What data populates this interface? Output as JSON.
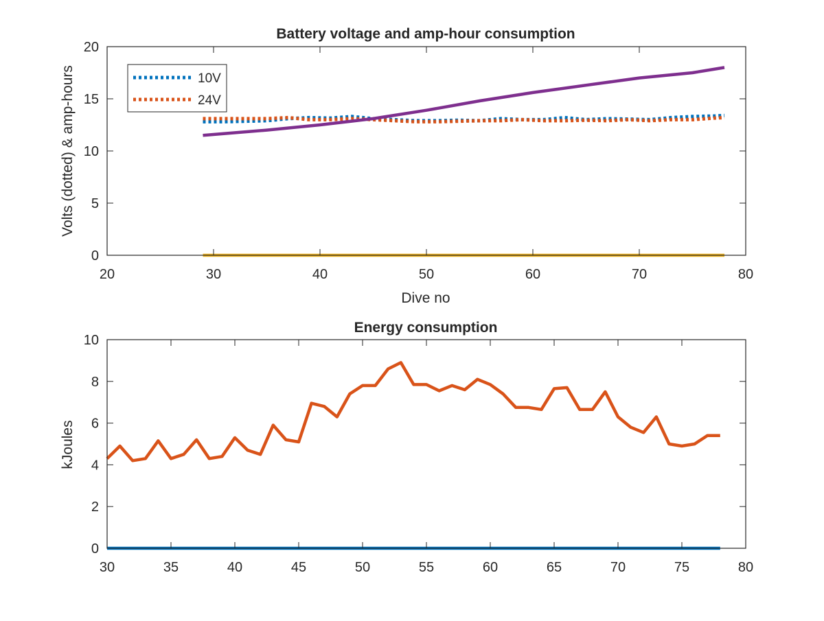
{
  "chart_data": [
    {
      "type": "line",
      "title": "Battery voltage and amp-hour consumption",
      "xlabel": "Dive no",
      "ylabel": "Volts (dotted) & amp-hours",
      "xlim": [
        20,
        80
      ],
      "ylim": [
        0,
        20
      ],
      "xticks": [
        "20",
        "30",
        "40",
        "50",
        "60",
        "70",
        "80"
      ],
      "yticks": [
        "0",
        "5",
        "10",
        "15",
        "20"
      ],
      "grid": false,
      "legend_position": "top-left",
      "series": [
        {
          "name": "10V",
          "style": "dotted",
          "color": "#0072BD",
          "x": [
            29,
            31,
            33,
            35,
            37,
            39,
            41,
            43,
            45,
            47,
            49,
            51,
            53,
            55,
            57,
            59,
            61,
            63,
            65,
            67,
            69,
            71,
            73,
            75,
            77,
            78
          ],
          "y": [
            12.8,
            12.8,
            12.85,
            12.9,
            13.1,
            13.2,
            13.15,
            13.3,
            13.1,
            13.0,
            12.9,
            12.9,
            12.95,
            12.9,
            13.1,
            13.0,
            13.0,
            13.2,
            13.0,
            13.1,
            13.05,
            13.0,
            13.2,
            13.3,
            13.35,
            13.4
          ]
        },
        {
          "name": "24V",
          "style": "dotted",
          "color": "#D95319",
          "x": [
            29,
            31,
            33,
            35,
            37,
            39,
            41,
            43,
            45,
            47,
            49,
            51,
            53,
            55,
            57,
            59,
            61,
            63,
            65,
            67,
            69,
            71,
            73,
            75,
            77,
            78
          ],
          "y": [
            13.1,
            13.1,
            13.1,
            13.1,
            13.2,
            13.0,
            13.0,
            13.1,
            13.0,
            12.9,
            12.8,
            12.8,
            12.85,
            12.9,
            12.9,
            13.0,
            12.9,
            12.9,
            12.95,
            12.9,
            13.0,
            12.9,
            13.0,
            13.0,
            13.15,
            13.2
          ]
        },
        {
          "style": "solid",
          "color": "#7E2F8E",
          "x": [
            29,
            35,
            40,
            45,
            50,
            55,
            60,
            65,
            70,
            75,
            78
          ],
          "y": [
            11.5,
            12.0,
            12.5,
            13.1,
            13.9,
            14.8,
            15.6,
            16.3,
            17.0,
            17.5,
            18.0
          ]
        },
        {
          "style": "solid",
          "color": "#EDB120",
          "x": [
            29,
            78
          ],
          "y": [
            0,
            0
          ]
        }
      ]
    },
    {
      "type": "line",
      "title": "Energy consumption",
      "xlabel": "",
      "ylabel": "kJoules",
      "xlim": [
        30,
        80
      ],
      "ylim": [
        0,
        10
      ],
      "xticks": [
        "30",
        "35",
        "40",
        "45",
        "50",
        "55",
        "60",
        "65",
        "70",
        "75",
        "80"
      ],
      "yticks": [
        "0",
        "2",
        "4",
        "6",
        "8",
        "10"
      ],
      "grid": false,
      "series": [
        {
          "style": "solid",
          "color": "#D95319",
          "x": [
            30,
            31,
            32,
            33,
            34,
            35,
            36,
            37,
            38,
            39,
            40,
            41,
            42,
            43,
            44,
            45,
            46,
            47,
            48,
            49,
            50,
            51,
            52,
            53,
            54,
            55,
            56,
            57,
            58,
            59,
            60,
            61,
            62,
            63,
            64,
            65,
            66,
            67,
            68,
            69,
            70,
            71,
            72,
            73,
            74,
            75,
            76,
            77,
            78
          ],
          "y": [
            4.3,
            4.9,
            4.2,
            4.3,
            5.15,
            4.3,
            4.5,
            5.2,
            4.3,
            4.4,
            5.3,
            4.7,
            4.5,
            5.9,
            5.2,
            5.1,
            6.95,
            6.8,
            6.3,
            7.4,
            7.8,
            7.8,
            8.6,
            8.9,
            7.85,
            7.85,
            7.55,
            7.8,
            7.6,
            8.1,
            7.85,
            7.4,
            6.75,
            6.75,
            6.65,
            7.65,
            7.7,
            6.65,
            6.65,
            7.5,
            6.3,
            5.8,
            5.55,
            6.3,
            5.0,
            4.9,
            5.0,
            5.4,
            5.4
          ]
        },
        {
          "style": "solid",
          "color": "#0072BD",
          "x": [
            30,
            78
          ],
          "y": [
            0,
            0
          ]
        }
      ]
    }
  ]
}
